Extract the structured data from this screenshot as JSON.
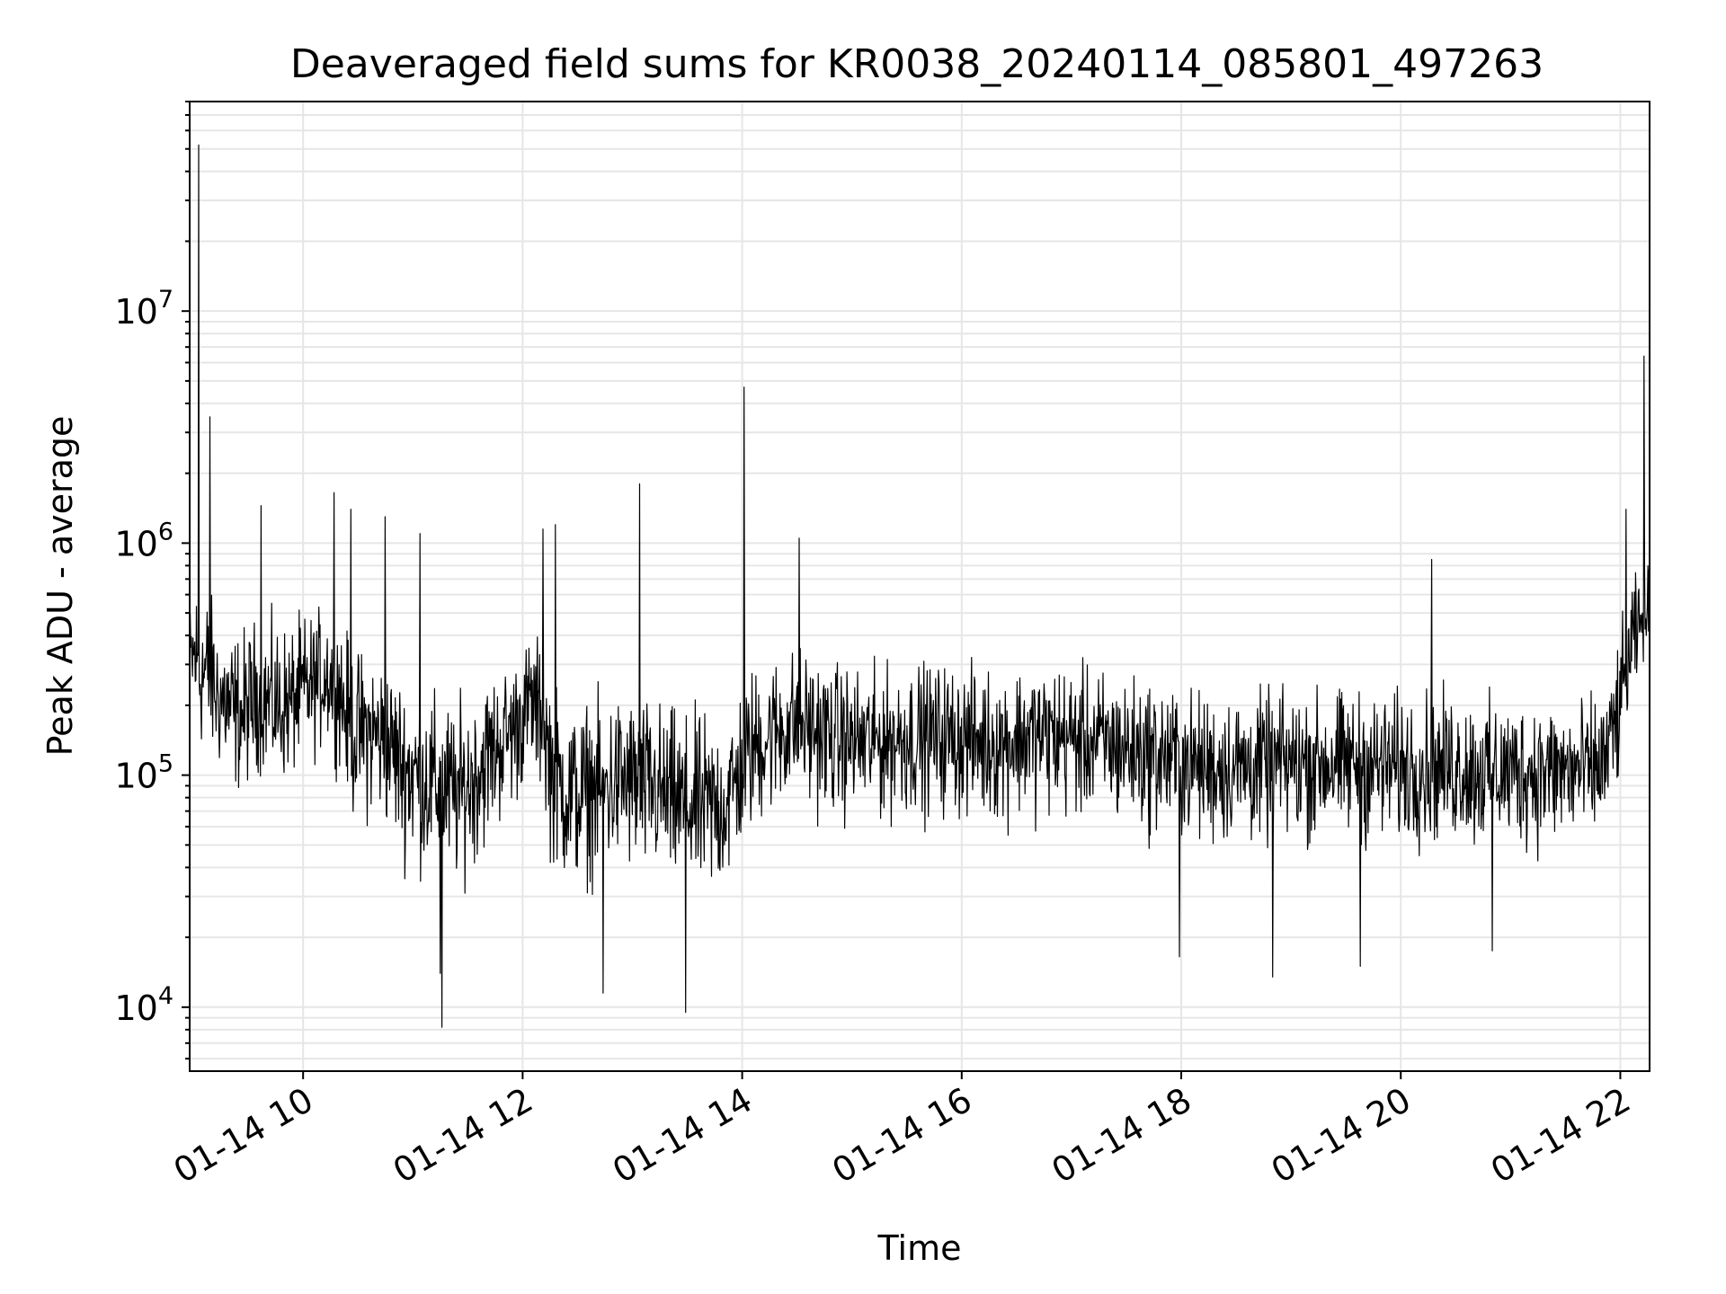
{
  "chart_data": {
    "type": "line",
    "title": "Deaveraged field sums for KR0038_20240114_085801_497263",
    "xlabel": "Time",
    "ylabel": "Peak ADU - average",
    "yscale": "log",
    "grid": true,
    "grid_minor": true,
    "line_color": "#000000",
    "grid_color": "#e6e6e6",
    "xlim": [
      "2024-01-14 08:58",
      "2024-01-14 22:16"
    ],
    "ylim": [
      5300,
      80000000
    ],
    "x_ticks": [
      {
        "value": "2024-01-14 10:00",
        "label": "01-14 10"
      },
      {
        "value": "2024-01-14 12:00",
        "label": "01-14 12"
      },
      {
        "value": "2024-01-14 14:00",
        "label": "01-14 14"
      },
      {
        "value": "2024-01-14 16:00",
        "label": "01-14 16"
      },
      {
        "value": "2024-01-14 18:00",
        "label": "01-14 18"
      },
      {
        "value": "2024-01-14 20:00",
        "label": "01-14 20"
      },
      {
        "value": "2024-01-14 22:00",
        "label": "01-14 22"
      }
    ],
    "y_ticks": [
      {
        "value": 10000,
        "base": "10",
        "exp": "4"
      },
      {
        "value": 100000,
        "base": "10",
        "exp": "5"
      },
      {
        "value": 1000000,
        "base": "10",
        "exp": "6"
      },
      {
        "value": 10000000,
        "base": "10",
        "exp": "7"
      }
    ],
    "series": [
      {
        "x": [
          "2024-01-14 08:58",
          "2024-01-14 09:01",
          "2024-01-14 09:04",
          "2024-01-14 09:07",
          "2024-01-14 09:10",
          "2024-01-14 09:13",
          "2024-01-14 09:18",
          "2024-01-14 09:24",
          "2024-01-14 09:30",
          "2024-01-14 09:35",
          "2024-01-14 09:40",
          "2024-01-14 09:47",
          "2024-01-14 09:53",
          "2024-01-14 10:00",
          "2024-01-14 10:06",
          "2024-01-14 10:13",
          "2024-01-14 10:20",
          "2024-01-14 10:26",
          "2024-01-14 10:33",
          "2024-01-14 10:40",
          "2024-01-14 10:47",
          "2024-01-14 10:55",
          "2024-01-14 11:02",
          "2024-01-14 11:08",
          "2024-01-14 11:13",
          "2024-01-14 11:18",
          "2024-01-14 11:25",
          "2024-01-14 11:32",
          "2024-01-14 11:40",
          "2024-01-14 11:48",
          "2024-01-14 11:56",
          "2024-01-14 12:04",
          "2024-01-14 12:10",
          "2024-01-14 12:16",
          "2024-01-14 12:22",
          "2024-01-14 12:30",
          "2024-01-14 12:38",
          "2024-01-14 12:46",
          "2024-01-14 12:54",
          "2024-01-14 13:02",
          "2024-01-14 13:06",
          "2024-01-14 13:10",
          "2024-01-14 13:18",
          "2024-01-14 13:26",
          "2024-01-14 13:34",
          "2024-01-14 13:42",
          "2024-01-14 13:50",
          "2024-01-14 13:56",
          "2024-01-14 14:00",
          "2024-01-14 14:06",
          "2024-01-14 14:14",
          "2024-01-14 14:22",
          "2024-01-14 14:30",
          "2024-01-14 14:38",
          "2024-01-14 14:46",
          "2024-01-14 14:54",
          "2024-01-14 15:04",
          "2024-01-14 15:14",
          "2024-01-14 15:24",
          "2024-01-14 15:34",
          "2024-01-14 15:44",
          "2024-01-14 15:54",
          "2024-01-14 16:04",
          "2024-01-14 16:14",
          "2024-01-14 16:24",
          "2024-01-14 16:34",
          "2024-01-14 16:44",
          "2024-01-14 16:54",
          "2024-01-14 17:04",
          "2024-01-14 17:14",
          "2024-01-14 17:24",
          "2024-01-14 17:34",
          "2024-01-14 17:44",
          "2024-01-14 17:54",
          "2024-01-14 18:04",
          "2024-01-14 18:14",
          "2024-01-14 18:24",
          "2024-01-14 18:34",
          "2024-01-14 18:44",
          "2024-01-14 18:54",
          "2024-01-14 19:04",
          "2024-01-14 19:14",
          "2024-01-14 19:24",
          "2024-01-14 19:34",
          "2024-01-14 19:44",
          "2024-01-14 19:54",
          "2024-01-14 20:04",
          "2024-01-14 20:14",
          "2024-01-14 20:24",
          "2024-01-14 20:34",
          "2024-01-14 20:44",
          "2024-01-14 20:54",
          "2024-01-14 21:04",
          "2024-01-14 21:14",
          "2024-01-14 21:24",
          "2024-01-14 21:34",
          "2024-01-14 21:44",
          "2024-01-14 21:52",
          "2024-01-14 21:58",
          "2024-01-14 22:04",
          "2024-01-14 22:08",
          "2024-01-14 22:12",
          "2024-01-14 22:16"
        ],
        "median": [
          300000,
          320000,
          260000,
          280000,
          250000,
          220000,
          200000,
          170000,
          190000,
          220000,
          210000,
          190000,
          200000,
          230000,
          250000,
          280000,
          240000,
          150000,
          160000,
          150000,
          140000,
          110000,
          100000,
          95000,
          90000,
          85000,
          80000,
          95000,
          120000,
          140000,
          170000,
          210000,
          190000,
          100000,
          85000,
          80000,
          85000,
          90000,
          95000,
          90000,
          85000,
          90000,
          80000,
          75000,
          72000,
          70000,
          75000,
          90000,
          110000,
          130000,
          150000,
          160000,
          170000,
          160000,
          150000,
          145000,
          140000,
          140000,
          145000,
          150000,
          150000,
          150000,
          145000,
          140000,
          140000,
          150000,
          150000,
          150000,
          145000,
          140000,
          135000,
          130000,
          125000,
          120000,
          115000,
          110000,
          110000,
          110000,
          110000,
          115000,
          115000,
          115000,
          115000,
          115000,
          110000,
          110000,
          110000,
          110000,
          110000,
          110000,
          105000,
          105000,
          105000,
          105000,
          105000,
          105000,
          105000,
          120000,
          180000,
          300000,
          400000,
          450000,
          500000
        ],
        "high": [
          700000,
          1000000,
          1100000,
          900000,
          800000,
          700000,
          650000,
          600000,
          600000,
          650000,
          600000,
          650000,
          600000,
          650000,
          650000,
          700000,
          650000,
          500000,
          450000,
          450000,
          400000,
          350000,
          350000,
          330000,
          300000,
          300000,
          300000,
          300000,
          350000,
          380000,
          400000,
          500000,
          500000,
          380000,
          300000,
          280000,
          300000,
          300000,
          320000,
          320000,
          300000,
          300000,
          280000,
          260000,
          260000,
          260000,
          260000,
          300000,
          350000,
          400000,
          420000,
          450000,
          480000,
          450000,
          400000,
          400000,
          380000,
          380000,
          380000,
          400000,
          400000,
          400000,
          380000,
          380000,
          380000,
          400000,
          400000,
          400000,
          380000,
          370000,
          360000,
          350000,
          340000,
          320000,
          300000,
          300000,
          300000,
          300000,
          300000,
          300000,
          300000,
          300000,
          300000,
          300000,
          300000,
          300000,
          300000,
          300000,
          300000,
          300000,
          280000,
          280000,
          280000,
          280000,
          280000,
          280000,
          280000,
          300000,
          450000,
          700000,
          900000,
          950000,
          1000000
        ],
        "low": [
          150000,
          120000,
          100000,
          90000,
          85000,
          80000,
          75000,
          65000,
          70000,
          80000,
          75000,
          70000,
          75000,
          80000,
          90000,
          100000,
          85000,
          50000,
          45000,
          45000,
          40000,
          30000,
          28000,
          26000,
          25000,
          25000,
          25000,
          28000,
          35000,
          45000,
          55000,
          70000,
          60000,
          30000,
          25000,
          24000,
          25000,
          26000,
          27000,
          26000,
          25000,
          25000,
          24000,
          22000,
          21000,
          21000,
          22000,
          27000,
          35000,
          42000,
          48000,
          52000,
          55000,
          52000,
          48000,
          47000,
          46000,
          46000,
          47000,
          48000,
          48000,
          48000,
          47000,
          46000,
          46000,
          48000,
          48000,
          48000,
          47000,
          46000,
          44000,
          42000,
          40000,
          38000,
          37000,
          36000,
          36000,
          36000,
          36000,
          37000,
          37000,
          37000,
          37000,
          37000,
          36000,
          36000,
          36000,
          36000,
          36000,
          36000,
          35000,
          35000,
          35000,
          35000,
          35000,
          35000,
          35000,
          40000,
          60000,
          120000,
          180000,
          200000,
          220000
        ],
        "spikes": [
          {
            "x": "2024-01-14 09:03",
            "y": 52000000
          },
          {
            "x": "2024-01-14 09:09",
            "y": 3500000
          },
          {
            "x": "2024-01-14 09:37",
            "y": 1450000
          },
          {
            "x": "2024-01-14 10:17",
            "y": 1650000
          },
          {
            "x": "2024-01-14 10:26",
            "y": 1400000
          },
          {
            "x": "2024-01-14 10:45",
            "y": 1300000
          },
          {
            "x": "2024-01-14 11:04",
            "y": 1100000
          },
          {
            "x": "2024-01-14 11:15",
            "y": 14000
          },
          {
            "x": "2024-01-14 11:16",
            "y": 8200
          },
          {
            "x": "2024-01-14 12:11",
            "y": 1150000
          },
          {
            "x": "2024-01-14 12:18",
            "y": 1200000
          },
          {
            "x": "2024-01-14 12:44",
            "y": 11500
          },
          {
            "x": "2024-01-14 13:04",
            "y": 1800000
          },
          {
            "x": "2024-01-14 13:29",
            "y": 9500
          },
          {
            "x": "2024-01-14 14:01",
            "y": 4700000
          },
          {
            "x": "2024-01-14 14:31",
            "y": 1050000
          },
          {
            "x": "2024-01-14 17:59",
            "y": 16500
          },
          {
            "x": "2024-01-14 18:50",
            "y": 13500
          },
          {
            "x": "2024-01-14 19:38",
            "y": 15000
          },
          {
            "x": "2024-01-14 20:17",
            "y": 850000
          },
          {
            "x": "2024-01-14 20:50",
            "y": 17500
          },
          {
            "x": "2024-01-14 22:03",
            "y": 1400000
          },
          {
            "x": "2024-01-14 22:13",
            "y": 6400000
          }
        ]
      }
    ]
  }
}
